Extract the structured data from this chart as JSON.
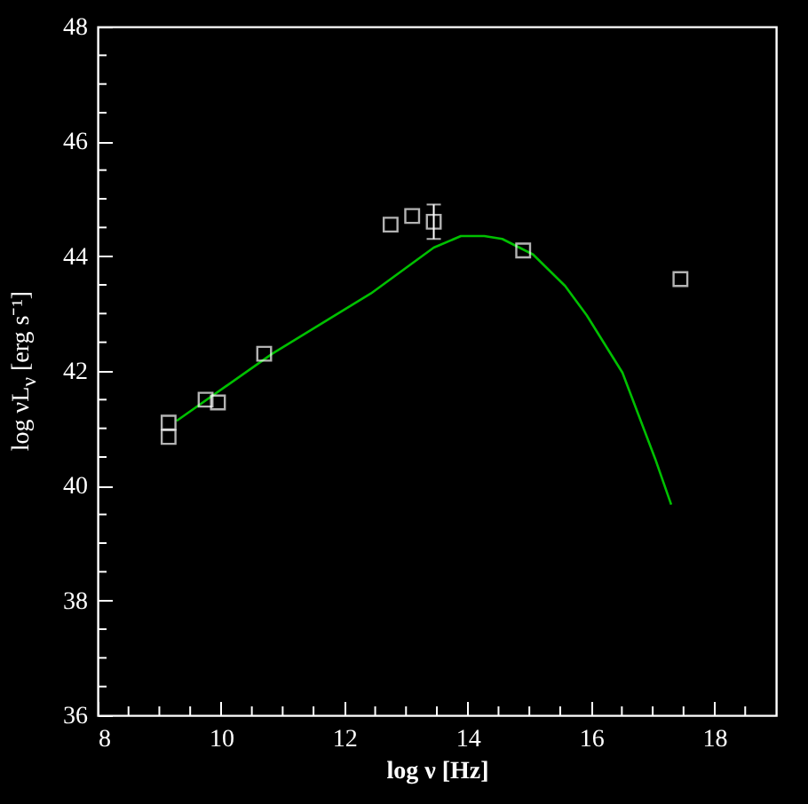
{
  "chart_data": {
    "type": "scatter",
    "xlabel": "log ν  [Hz]",
    "ylabel": "log νL$_{ν}$ [erg s⁻¹]",
    "xlim": [
      8,
      19
    ],
    "ylim": [
      36,
      48
    ],
    "xticks": [
      8,
      {
        "value": 8.5,
        "label": null
      },
      {
        "value": 9,
        "label": null
      },
      {
        "value": 9.5,
        "label": null
      },
      10,
      {
        "value": 10.5,
        "label": null
      },
      {
        "value": 11,
        "label": null
      },
      {
        "value": 11.5,
        "label": null
      },
      12,
      {
        "value": 12.5,
        "label": null
      },
      {
        "value": 13,
        "label": null
      },
      {
        "value": 13.5,
        "label": null
      },
      14,
      {
        "value": 14.5,
        "label": null
      },
      {
        "value": 15,
        "label": null
      },
      {
        "value": 15.5,
        "label": null
      },
      16,
      {
        "value": 16.5,
        "label": null
      },
      {
        "value": 17,
        "label": null
      },
      {
        "value": 17.5,
        "label": null
      },
      18,
      {
        "value": 18.5,
        "label": null
      }
    ],
    "yticks": [
      36,
      {
        "value": 36.5,
        "label": null
      },
      {
        "value": 37,
        "label": null
      },
      {
        "value": 37.5,
        "label": null
      },
      38,
      {
        "value": 38.5,
        "label": null
      },
      {
        "value": 39,
        "label": null
      },
      {
        "value": 39.5,
        "label": null
      },
      40,
      {
        "value": 40.5,
        "label": null
      },
      {
        "value": 41,
        "label": null
      },
      {
        "value": 41.5,
        "label": null
      },
      42,
      {
        "value": 42.5,
        "label": null
      },
      {
        "value": 43,
        "label": null
      },
      {
        "value": 43.5,
        "label": null
      },
      44,
      {
        "value": 44.5,
        "label": null
      },
      {
        "value": 45,
        "label": null
      },
      {
        "value": 45.5,
        "label": null
      },
      46,
      {
        "value": 46.5,
        "label": null
      },
      {
        "value": 47,
        "label": null
      },
      {
        "value": 47.5,
        "label": null
      },
      48
    ],
    "series": [
      {
        "type": "line",
        "color": "#00c000",
        "marker": "none",
        "line_style": "solid",
        "x": [
          9.28,
          10.83,
          12.43,
          13.45,
          13.89,
          14.27,
          14.56,
          15.06,
          15.58,
          15.93,
          16.51,
          17.04,
          17.3
        ],
        "values": [
          41.13,
          42.3,
          43.35,
          44.15,
          44.35,
          44.35,
          44.3,
          44.03,
          43.48,
          42.97,
          41.97,
          40.47,
          39.67
        ]
      },
      {
        "color": "#ffffff",
        "marker": "square",
        "x": [
          17.45,
          14.9,
          13.45,
          13.1,
          12.75,
          10.7,
          9.95,
          9.75,
          9.15,
          9.15
        ],
        "values": [
          43.6,
          44.1,
          44.6,
          44.7,
          44.55,
          42.3,
          41.45,
          41.5,
          41.1,
          40.85
        ],
        "errors": [
          null,
          null,
          0.3,
          null,
          null,
          null,
          null,
          null,
          null,
          null
        ]
      }
    ]
  }
}
